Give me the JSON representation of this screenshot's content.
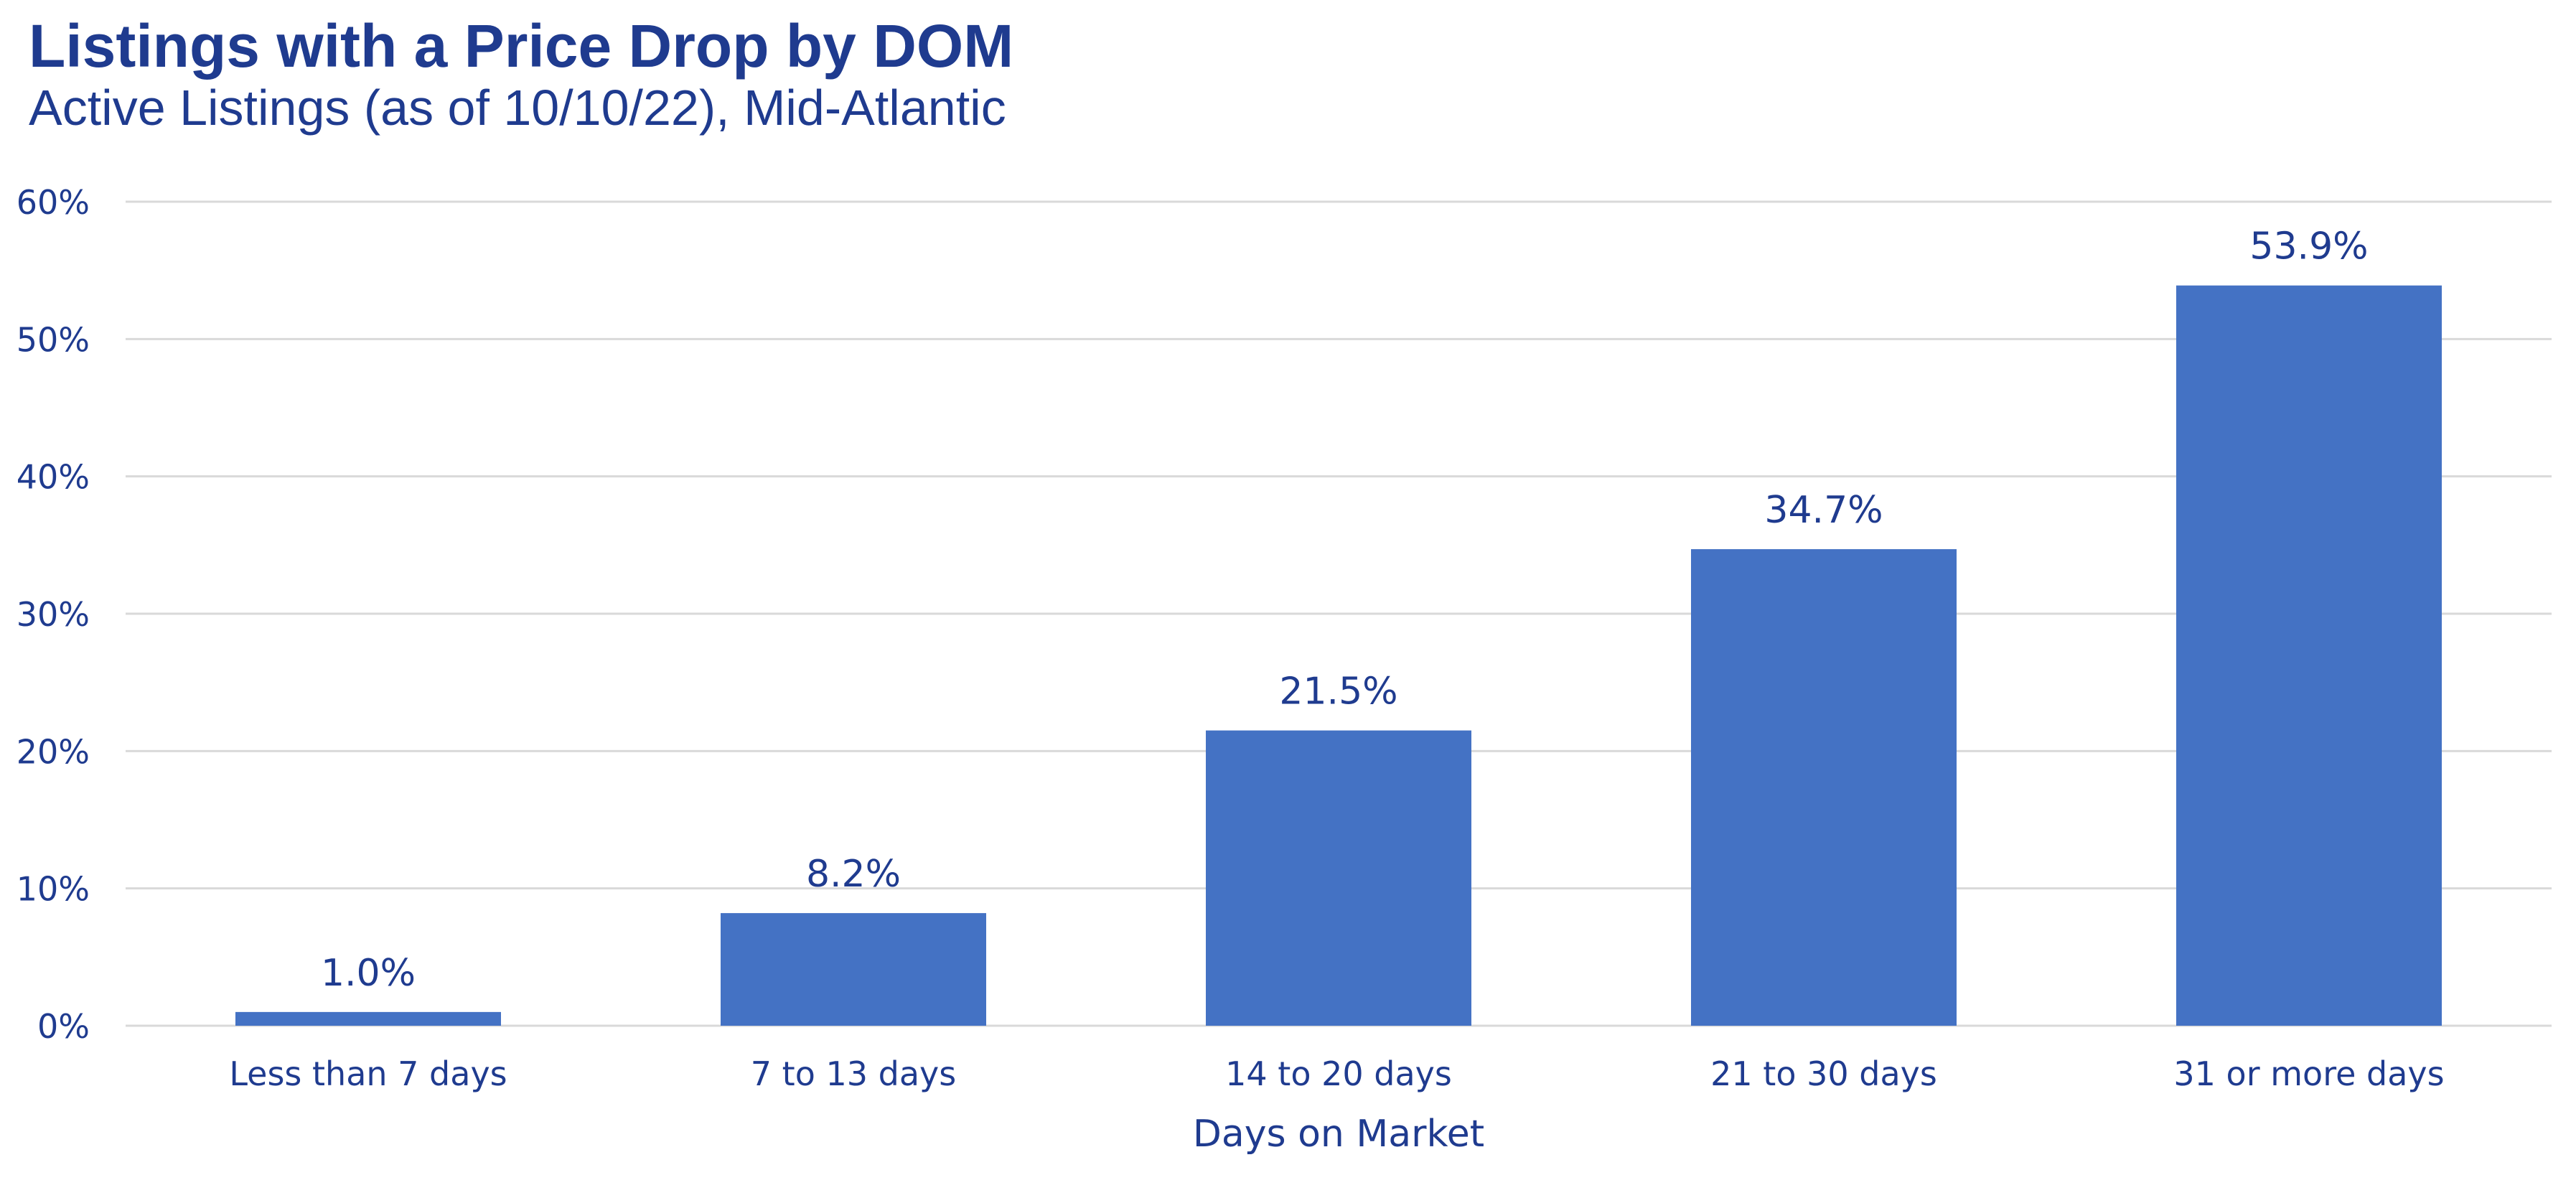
{
  "title": "Listings with a Price Drop by DOM",
  "subtitle": "Active Listings (as of 10/10/22), Mid-Atlantic",
  "colors": {
    "bar": "#4472c4",
    "text": "#1f3b8f",
    "grid": "#d9d9d9"
  },
  "chart_data": {
    "type": "bar",
    "title": "Listings with a Price Drop by DOM",
    "subtitle": "Active Listings (as of 10/10/22), Mid-Atlantic",
    "categories": [
      "Less than 7 days",
      "7 to 13 days",
      "14 to 20 days",
      "21 to 30 days",
      "31 or more days"
    ],
    "values": [
      1.0,
      8.2,
      21.5,
      34.7,
      53.9
    ],
    "data_labels": [
      "1.0%",
      "8.2%",
      "21.5%",
      "34.7%",
      "53.9%"
    ],
    "xlabel": "Days on Market",
    "ylabel": "",
    "ylim": [
      0,
      60
    ],
    "y_ticks": [
      0,
      10,
      20,
      30,
      40,
      50,
      60
    ],
    "y_tick_labels": [
      "0%",
      "10%",
      "20%",
      "30%",
      "40%",
      "50%",
      "60%"
    ],
    "grid": true,
    "legend": "none"
  }
}
